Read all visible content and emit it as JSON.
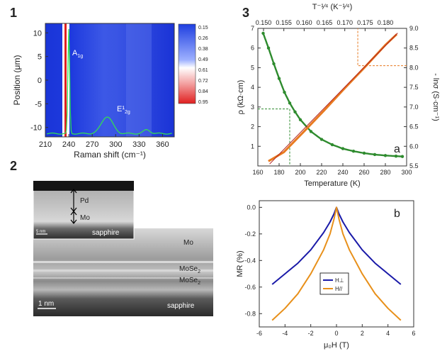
{
  "panel_labels": {
    "p1": "1",
    "p2": "2",
    "p3": "3",
    "a": "a",
    "b": "b"
  },
  "panel1": {
    "xlabel": "Raman shift (cm⁻¹)",
    "ylabel": "Position (μm)",
    "peak1": "A",
    "peak1_sub": "1g",
    "peak2": "E¹",
    "peak2_sub": "2g",
    "colorbar": {
      "ticks": [
        "0.15",
        "0.26",
        "0.38",
        "0.49",
        "0.61",
        "0.72",
        "0.84",
        "0.95"
      ],
      "colors": [
        "#1f3fe0",
        "#ffffff",
        "#e02020"
      ]
    }
  },
  "panel2": {
    "inset": {
      "pd": "Pd",
      "mo": "Mo",
      "scale": "5 nm",
      "substrate": "sapphire"
    },
    "main": {
      "mo": "Mo",
      "mose2_a": "MoSe",
      "mose2_b": "MoSe",
      "sub2": "2",
      "scale": "1 nm",
      "substrate": "sapphire"
    }
  },
  "chart_data": [
    {
      "type": "heatmap",
      "id": "raman-map",
      "xlabel": "Raman shift (cm⁻¹)",
      "ylabel": "Position (μm)",
      "xlim": [
        210,
        375
      ],
      "ylim": [
        -12,
        12
      ],
      "xticks": [
        210,
        240,
        270,
        300,
        330,
        360
      ],
      "yticks": [
        10,
        5,
        0,
        -5,
        -10
      ],
      "colorbar_range": [
        0.15,
        0.95
      ],
      "spectrum_peaks": [
        {
          "x": 240,
          "label": "A1g"
        },
        {
          "x": 288,
          "label": "E1 2g"
        }
      ]
    },
    {
      "type": "line",
      "id": "resistivity",
      "xlabel": "Temperature (K)",
      "ylabel": "ρ (kΩ·cm)",
      "y2label": "- lnσ (S·cm⁻¹)",
      "x2label": "T⁻¹⁄⁴ (K⁻¹⁄⁴)",
      "xlim": [
        160,
        300
      ],
      "ylim": [
        0,
        7
      ],
      "y2lim": [
        5.5,
        9.0
      ],
      "x2lim": [
        0.15,
        0.184
      ],
      "xticks": [
        160,
        180,
        200,
        220,
        240,
        260,
        280,
        300
      ],
      "yticks": [
        1,
        2,
        3,
        4,
        5,
        6,
        7
      ],
      "y2ticks": [
        "5.5",
        "6.0",
        "6.5",
        "7.0",
        "7.5",
        "8.0",
        "8.5",
        "9.0"
      ],
      "x2ticks": [
        "0.150",
        "0.155",
        "0.160",
        "0.165",
        "0.170",
        "0.175",
        "0.180"
      ],
      "series": [
        {
          "color": "#2e8b2e",
          "x": [
            165,
            170,
            175,
            180,
            185,
            190,
            195,
            200,
            210,
            220,
            230,
            240,
            250,
            260,
            270,
            280,
            290,
            296
          ],
          "y": [
            6.75,
            6.0,
            5.2,
            4.45,
            3.75,
            3.2,
            2.75,
            2.35,
            1.75,
            1.35,
            1.08,
            0.88,
            0.75,
            0.65,
            0.58,
            0.53,
            0.5,
            0.48
          ]
        },
        {
          "color": "#e87a20",
          "axis": "top-right",
          "x2": [
            0.1512,
            0.155,
            0.16,
            0.165,
            0.17,
            0.175,
            0.18,
            0.1828
          ],
          "y2": [
            5.62,
            5.85,
            6.38,
            6.92,
            7.48,
            8.02,
            8.58,
            8.85
          ]
        }
      ]
    },
    {
      "type": "line",
      "id": "magnetoresistance",
      "xlabel": "μ₀H (T)",
      "ylabel": "MR (%)",
      "xlim": [
        -6,
        6
      ],
      "ylim": [
        -0.9,
        0.05
      ],
      "xticks": [
        -6,
        -4,
        -2,
        0,
        2,
        4,
        6
      ],
      "yticks": [
        "0.0",
        "-0.2",
        "-0.4",
        "-0.6",
        "-0.8"
      ],
      "series": [
        {
          "name": "H⊥",
          "color": "#1a1aa8",
          "x": [
            -5,
            -4,
            -3,
            -2,
            -1,
            -0.5,
            -0.2,
            0,
            0.2,
            0.5,
            1,
            2,
            3,
            4,
            5
          ],
          "y": [
            -0.58,
            -0.5,
            -0.42,
            -0.32,
            -0.19,
            -0.11,
            -0.05,
            0,
            -0.05,
            -0.11,
            -0.19,
            -0.32,
            -0.42,
            -0.5,
            -0.58
          ]
        },
        {
          "name": "H//",
          "color": "#e8901a",
          "x": [
            -5,
            -4,
            -3,
            -2,
            -1,
            -0.5,
            -0.2,
            0,
            0.2,
            0.5,
            1,
            2,
            3,
            4,
            5
          ],
          "y": [
            -0.85,
            -0.76,
            -0.65,
            -0.5,
            -0.32,
            -0.2,
            -0.09,
            0,
            -0.09,
            -0.2,
            -0.32,
            -0.5,
            -0.65,
            -0.76,
            -0.85
          ]
        }
      ]
    }
  ]
}
